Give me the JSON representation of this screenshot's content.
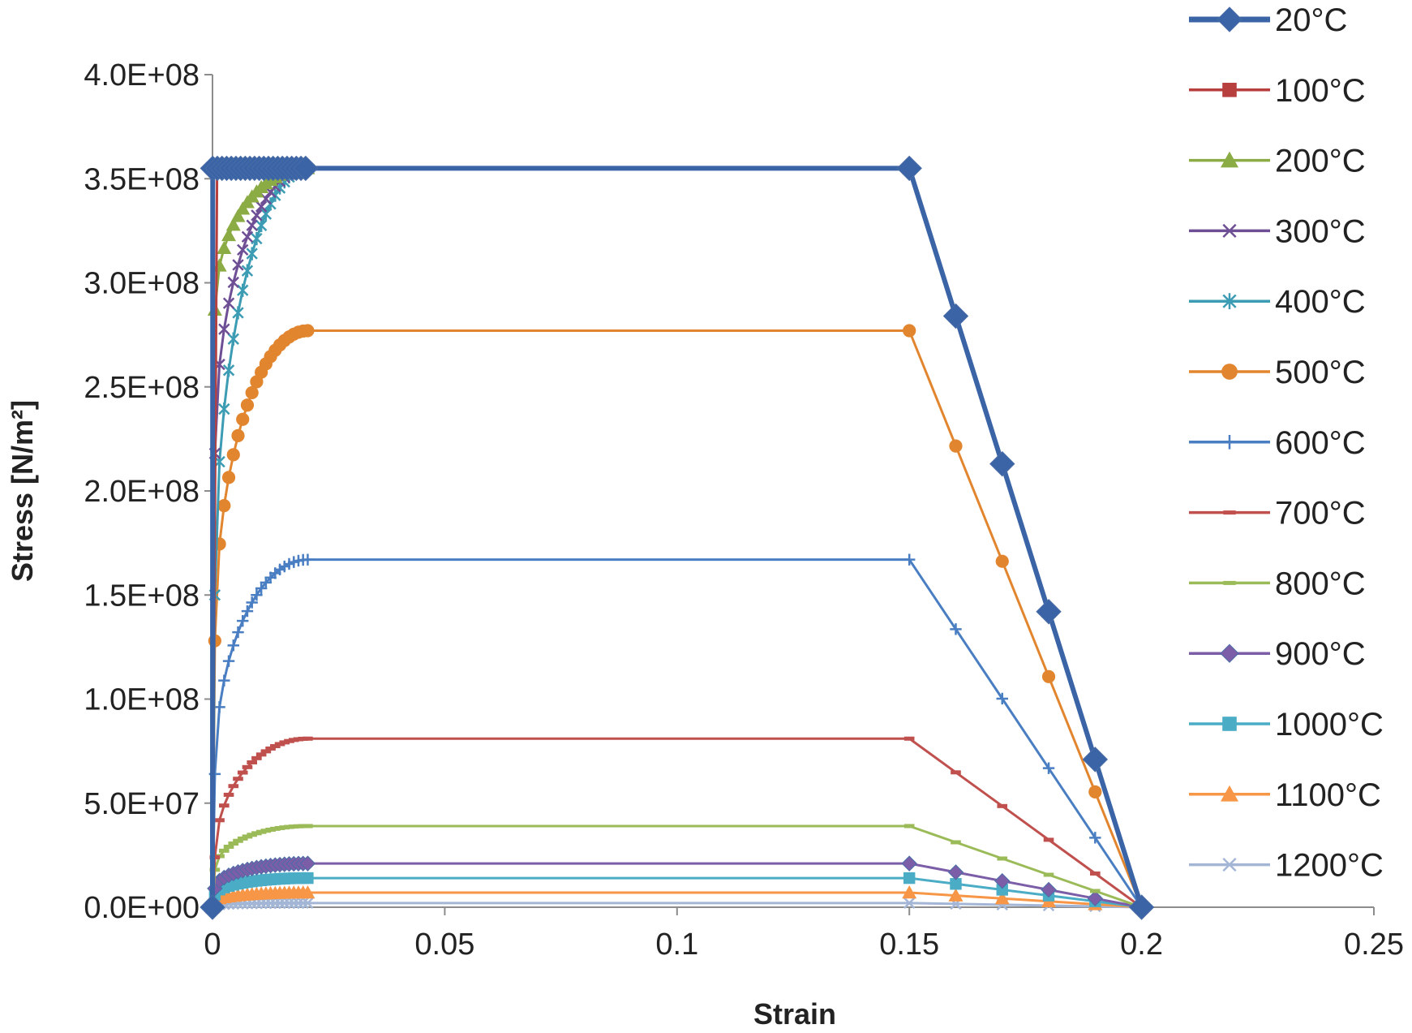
{
  "chart_data": {
    "type": "line",
    "title": "",
    "xlabel": "Strain",
    "ylabel": "Stress [N/m²]",
    "xlim": [
      0,
      0.25
    ],
    "ylim": [
      0,
      400000000
    ],
    "x_ticks": [
      0,
      0.05,
      0.1,
      0.15,
      0.2,
      0.25
    ],
    "x_tick_labels": [
      "0",
      "0.05",
      "0.1",
      "0.15",
      "0.2",
      "0.25"
    ],
    "y_ticks": [
      0,
      50000000,
      100000000,
      150000000,
      200000000,
      250000000,
      300000000,
      350000000,
      400000000
    ],
    "y_tick_labels": [
      "0.0E+00",
      "5.0E+07",
      "1.0E+08",
      "1.5E+08",
      "2.0E+08",
      "2.5E+08",
      "3.0E+08",
      "3.5E+08",
      "4.0E+08"
    ],
    "grid": false,
    "legend_position": "right",
    "series": [
      {
        "name": "20°C",
        "color": "#3a64a6",
        "marker": "diamond",
        "peak": 355000000,
        "eps_y": 5e-05,
        "heavy": true
      },
      {
        "name": "100°C",
        "color": "#b7403f",
        "marker": "square",
        "peak": 355000000,
        "eps_y": 0.002
      },
      {
        "name": "200°C",
        "color": "#8bab45",
        "marker": "triangle",
        "peak": 355000000,
        "eps_y": 0.02,
        "p0": 287000000
      },
      {
        "name": "300°C",
        "color": "#6e4f95",
        "marker": "x",
        "peak": 355000000,
        "eps_y": 0.02,
        "p0": 218000000
      },
      {
        "name": "400°C",
        "color": "#3c9cb3",
        "marker": "asterisk",
        "peak": 355000000,
        "eps_y": 0.02,
        "p0": 150000000
      },
      {
        "name": "500°C",
        "color": "#e2852f",
        "marker": "circle",
        "peak": 277000000,
        "eps_y": 0.02,
        "p0": 128000000
      },
      {
        "name": "600°C",
        "color": "#4a7ec2",
        "marker": "plus",
        "peak": 167000000,
        "eps_y": 0.02,
        "p0": 64000000
      },
      {
        "name": "700°C",
        "color": "#c0504d",
        "marker": "dash",
        "peak": 81000000,
        "eps_y": 0.02,
        "p0": 24000000
      },
      {
        "name": "800°C",
        "color": "#9bbb59",
        "marker": "dash",
        "peak": 39000000,
        "eps_y": 0.02,
        "p0": 18000000
      },
      {
        "name": "900°C",
        "color": "#7b5ea7",
        "marker": "diamond",
        "peak": 21000000,
        "eps_y": 0.02,
        "p0": 9000000
      },
      {
        "name": "1000°C",
        "color": "#4bacc6",
        "marker": "square",
        "peak": 14000000,
        "eps_y": 0.02,
        "p0": 6000000
      },
      {
        "name": "1100°C",
        "color": "#f79646",
        "marker": "triangle",
        "peak": 7000000,
        "eps_y": 0.02,
        "p0": 3000000
      },
      {
        "name": "1200°C",
        "color": "#a4b6d6",
        "marker": "x",
        "peak": 2000000,
        "eps_y": 0.02,
        "p0": 1000000
      }
    ],
    "plateau_end_strain": 0.15,
    "softening_strains": [
      0.15,
      0.16,
      0.17,
      0.18,
      0.19,
      0.2
    ],
    "softening_fractions": [
      1,
      0.8,
      0.6,
      0.4,
      0.2,
      0
    ]
  }
}
